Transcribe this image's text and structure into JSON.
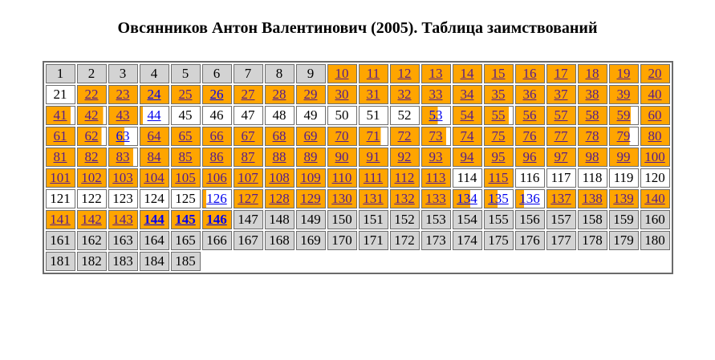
{
  "page": {
    "title": "Овсянников Антон Валентинович (2005). Таблица заимствований"
  },
  "colors": {
    "orange_fill": "#FFA500",
    "gray_cell": "#D3D3D3",
    "white_cell": "#FFFFFF",
    "link_new": "#0000EE",
    "link_visited": "#551A8B",
    "plain_text": "#000000",
    "cell_border": "#6E6E6E"
  },
  "table": {
    "columns": 20,
    "total_pages": 185,
    "legend": {
      "bg": {
        "g": "gray",
        "w": "white",
        "o": "orange (fill % from left = borrowed share)"
      },
      "style": {
        "p": "plain text",
        "v": "visited link (purple)",
        "n": "link (blue)",
        "nb": "link (blue, bold)"
      }
    },
    "cells": [
      [
        1,
        "g",
        0,
        "p"
      ],
      [
        2,
        "g",
        0,
        "p"
      ],
      [
        3,
        "g",
        0,
        "p"
      ],
      [
        4,
        "g",
        0,
        "p"
      ],
      [
        5,
        "g",
        0,
        "p"
      ],
      [
        6,
        "g",
        0,
        "p"
      ],
      [
        7,
        "g",
        0,
        "p"
      ],
      [
        8,
        "g",
        0,
        "p"
      ],
      [
        9,
        "g",
        0,
        "p"
      ],
      [
        10,
        "o",
        100,
        "v"
      ],
      [
        11,
        "o",
        100,
        "v"
      ],
      [
        12,
        "o",
        100,
        "v"
      ],
      [
        13,
        "o",
        100,
        "v"
      ],
      [
        14,
        "o",
        100,
        "v"
      ],
      [
        15,
        "o",
        100,
        "v"
      ],
      [
        16,
        "o",
        100,
        "v"
      ],
      [
        17,
        "o",
        100,
        "v"
      ],
      [
        18,
        "o",
        100,
        "v"
      ],
      [
        19,
        "o",
        100,
        "v"
      ],
      [
        20,
        "o",
        100,
        "v"
      ],
      [
        21,
        "w",
        0,
        "p"
      ],
      [
        22,
        "o",
        100,
        "v"
      ],
      [
        23,
        "o",
        100,
        "v"
      ],
      [
        24,
        "o",
        100,
        "n"
      ],
      [
        25,
        "o",
        100,
        "v"
      ],
      [
        26,
        "o",
        100,
        "n"
      ],
      [
        27,
        "o",
        100,
        "v"
      ],
      [
        28,
        "o",
        100,
        "v"
      ],
      [
        29,
        "o",
        100,
        "v"
      ],
      [
        30,
        "o",
        100,
        "v"
      ],
      [
        31,
        "o",
        100,
        "v"
      ],
      [
        32,
        "o",
        100,
        "v"
      ],
      [
        33,
        "o",
        100,
        "v"
      ],
      [
        34,
        "o",
        100,
        "v"
      ],
      [
        35,
        "o",
        100,
        "v"
      ],
      [
        36,
        "o",
        100,
        "v"
      ],
      [
        37,
        "o",
        100,
        "v"
      ],
      [
        38,
        "o",
        100,
        "v"
      ],
      [
        39,
        "o",
        100,
        "v"
      ],
      [
        40,
        "o",
        100,
        "v"
      ],
      [
        41,
        "o",
        85,
        "v"
      ],
      [
        42,
        "o",
        90,
        "v"
      ],
      [
        43,
        "o",
        100,
        "v"
      ],
      [
        44,
        "o",
        8,
        "n"
      ],
      [
        45,
        "w",
        0,
        "p"
      ],
      [
        46,
        "w",
        0,
        "p"
      ],
      [
        47,
        "w",
        0,
        "p"
      ],
      [
        48,
        "w",
        0,
        "p"
      ],
      [
        49,
        "w",
        0,
        "p"
      ],
      [
        50,
        "w",
        0,
        "p"
      ],
      [
        51,
        "w",
        0,
        "p"
      ],
      [
        52,
        "w",
        0,
        "p"
      ],
      [
        53,
        "o",
        55,
        "n"
      ],
      [
        54,
        "o",
        100,
        "v"
      ],
      [
        55,
        "o",
        85,
        "v"
      ],
      [
        56,
        "o",
        100,
        "v"
      ],
      [
        57,
        "o",
        100,
        "v"
      ],
      [
        58,
        "o",
        100,
        "v"
      ],
      [
        59,
        "o",
        75,
        "v"
      ],
      [
        60,
        "o",
        100,
        "v"
      ],
      [
        61,
        "o",
        100,
        "v"
      ],
      [
        62,
        "o",
        85,
        "v"
      ],
      [
        63,
        "o",
        55,
        "n"
      ],
      [
        64,
        "o",
        100,
        "v"
      ],
      [
        65,
        "o",
        100,
        "v"
      ],
      [
        66,
        "o",
        100,
        "v"
      ],
      [
        67,
        "o",
        100,
        "v"
      ],
      [
        68,
        "o",
        100,
        "v"
      ],
      [
        69,
        "o",
        100,
        "v"
      ],
      [
        70,
        "o",
        100,
        "v"
      ],
      [
        71,
        "o",
        75,
        "v"
      ],
      [
        72,
        "o",
        100,
        "v"
      ],
      [
        73,
        "o",
        85,
        "v"
      ],
      [
        74,
        "o",
        100,
        "v"
      ],
      [
        75,
        "o",
        100,
        "v"
      ],
      [
        76,
        "o",
        100,
        "v"
      ],
      [
        77,
        "o",
        100,
        "v"
      ],
      [
        78,
        "o",
        100,
        "v"
      ],
      [
        79,
        "o",
        70,
        "v"
      ],
      [
        80,
        "o",
        100,
        "v"
      ],
      [
        81,
        "o",
        100,
        "v"
      ],
      [
        82,
        "o",
        100,
        "v"
      ],
      [
        83,
        "o",
        85,
        "v"
      ],
      [
        84,
        "o",
        100,
        "v"
      ],
      [
        85,
        "o",
        100,
        "v"
      ],
      [
        86,
        "o",
        100,
        "v"
      ],
      [
        87,
        "o",
        100,
        "v"
      ],
      [
        88,
        "o",
        100,
        "v"
      ],
      [
        89,
        "o",
        100,
        "v"
      ],
      [
        90,
        "o",
        100,
        "v"
      ],
      [
        91,
        "o",
        100,
        "v"
      ],
      [
        92,
        "o",
        100,
        "v"
      ],
      [
        93,
        "o",
        100,
        "v"
      ],
      [
        94,
        "o",
        100,
        "v"
      ],
      [
        95,
        "o",
        100,
        "v"
      ],
      [
        96,
        "o",
        100,
        "v"
      ],
      [
        97,
        "o",
        100,
        "v"
      ],
      [
        98,
        "o",
        100,
        "v"
      ],
      [
        99,
        "o",
        100,
        "v"
      ],
      [
        100,
        "o",
        100,
        "v"
      ],
      [
        101,
        "o",
        100,
        "v"
      ],
      [
        102,
        "o",
        100,
        "v"
      ],
      [
        103,
        "o",
        100,
        "v"
      ],
      [
        104,
        "o",
        100,
        "v"
      ],
      [
        105,
        "o",
        100,
        "v"
      ],
      [
        106,
        "o",
        100,
        "v"
      ],
      [
        107,
        "o",
        100,
        "v"
      ],
      [
        108,
        "o",
        100,
        "v"
      ],
      [
        109,
        "o",
        100,
        "v"
      ],
      [
        110,
        "o",
        100,
        "v"
      ],
      [
        111,
        "o",
        100,
        "v"
      ],
      [
        112,
        "o",
        100,
        "v"
      ],
      [
        113,
        "o",
        100,
        "v"
      ],
      [
        114,
        "w",
        0,
        "p"
      ],
      [
        115,
        "o",
        100,
        "v"
      ],
      [
        116,
        "w",
        0,
        "p"
      ],
      [
        117,
        "w",
        0,
        "p"
      ],
      [
        118,
        "w",
        0,
        "p"
      ],
      [
        119,
        "w",
        0,
        "p"
      ],
      [
        120,
        "w",
        0,
        "p"
      ],
      [
        121,
        "w",
        0,
        "p"
      ],
      [
        122,
        "w",
        0,
        "p"
      ],
      [
        123,
        "w",
        0,
        "p"
      ],
      [
        124,
        "w",
        0,
        "p"
      ],
      [
        125,
        "w",
        0,
        "p"
      ],
      [
        126,
        "o",
        12,
        "n"
      ],
      [
        127,
        "o",
        100,
        "v"
      ],
      [
        128,
        "o",
        100,
        "v"
      ],
      [
        129,
        "o",
        100,
        "v"
      ],
      [
        130,
        "o",
        100,
        "v"
      ],
      [
        131,
        "o",
        100,
        "v"
      ],
      [
        132,
        "o",
        100,
        "v"
      ],
      [
        133,
        "o",
        100,
        "v"
      ],
      [
        134,
        "o",
        60,
        "n"
      ],
      [
        135,
        "o",
        45,
        "n"
      ],
      [
        136,
        "o",
        28,
        "n"
      ],
      [
        137,
        "o",
        100,
        "v"
      ],
      [
        138,
        "o",
        100,
        "v"
      ],
      [
        139,
        "o",
        100,
        "v"
      ],
      [
        140,
        "o",
        100,
        "v"
      ],
      [
        141,
        "o",
        100,
        "v"
      ],
      [
        142,
        "o",
        100,
        "v"
      ],
      [
        143,
        "o",
        100,
        "v"
      ],
      [
        144,
        "o",
        100,
        "nb"
      ],
      [
        145,
        "o",
        100,
        "nb"
      ],
      [
        146,
        "o",
        100,
        "nb"
      ],
      [
        147,
        "g",
        0,
        "p"
      ],
      [
        148,
        "g",
        0,
        "p"
      ],
      [
        149,
        "g",
        0,
        "p"
      ],
      [
        150,
        "g",
        0,
        "p"
      ],
      [
        151,
        "g",
        0,
        "p"
      ],
      [
        152,
        "g",
        0,
        "p"
      ],
      [
        153,
        "g",
        0,
        "p"
      ],
      [
        154,
        "g",
        0,
        "p"
      ],
      [
        155,
        "g",
        0,
        "p"
      ],
      [
        156,
        "g",
        0,
        "p"
      ],
      [
        157,
        "g",
        0,
        "p"
      ],
      [
        158,
        "g",
        0,
        "p"
      ],
      [
        159,
        "g",
        0,
        "p"
      ],
      [
        160,
        "g",
        0,
        "p"
      ],
      [
        161,
        "g",
        0,
        "p"
      ],
      [
        162,
        "g",
        0,
        "p"
      ],
      [
        163,
        "g",
        0,
        "p"
      ],
      [
        164,
        "g",
        0,
        "p"
      ],
      [
        165,
        "g",
        0,
        "p"
      ],
      [
        166,
        "g",
        0,
        "p"
      ],
      [
        167,
        "g",
        0,
        "p"
      ],
      [
        168,
        "g",
        0,
        "p"
      ],
      [
        169,
        "g",
        0,
        "p"
      ],
      [
        170,
        "g",
        0,
        "p"
      ],
      [
        171,
        "g",
        0,
        "p"
      ],
      [
        172,
        "g",
        0,
        "p"
      ],
      [
        173,
        "g",
        0,
        "p"
      ],
      [
        174,
        "g",
        0,
        "p"
      ],
      [
        175,
        "g",
        0,
        "p"
      ],
      [
        176,
        "g",
        0,
        "p"
      ],
      [
        177,
        "g",
        0,
        "p"
      ],
      [
        178,
        "g",
        0,
        "p"
      ],
      [
        179,
        "g",
        0,
        "p"
      ],
      [
        180,
        "g",
        0,
        "p"
      ],
      [
        181,
        "g",
        0,
        "p"
      ],
      [
        182,
        "g",
        0,
        "p"
      ],
      [
        183,
        "g",
        0,
        "p"
      ],
      [
        184,
        "g",
        0,
        "p"
      ],
      [
        185,
        "g",
        0,
        "p"
      ]
    ]
  }
}
